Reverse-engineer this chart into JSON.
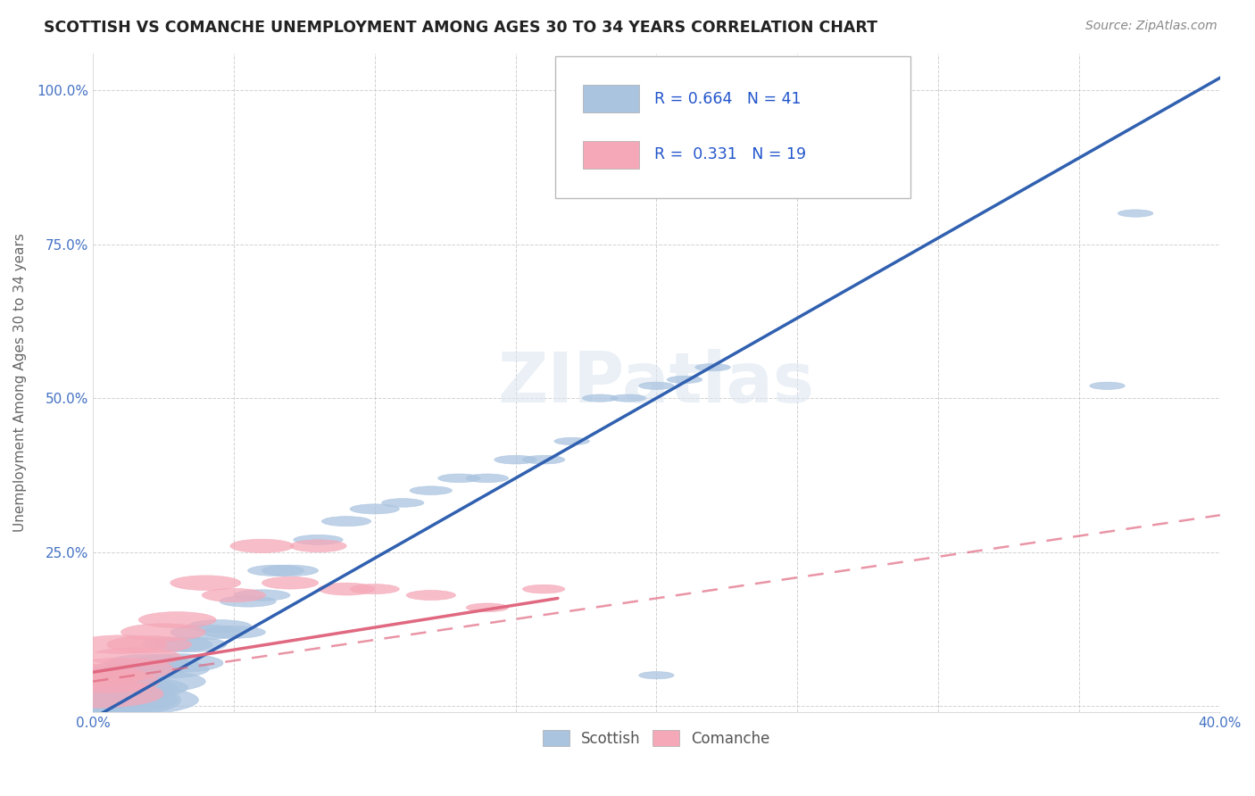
{
  "title": "SCOTTISH VS COMANCHE UNEMPLOYMENT AMONG AGES 30 TO 34 YEARS CORRELATION CHART",
  "source": "Source: ZipAtlas.com",
  "ylabel": "Unemployment Among Ages 30 to 34 years",
  "xlim": [
    0.0,
    0.4
  ],
  "ylim": [
    -0.01,
    1.06
  ],
  "xtick_positions": [
    0.0,
    0.05,
    0.1,
    0.15,
    0.2,
    0.25,
    0.3,
    0.35,
    0.4
  ],
  "xticklabels": [
    "0.0%",
    "",
    "",
    "",
    "",
    "",
    "",
    "",
    "40.0%"
  ],
  "ytick_positions": [
    0.0,
    0.25,
    0.5,
    0.75,
    1.0
  ],
  "yticklabels": [
    "",
    "25.0%",
    "50.0%",
    "75.0%",
    "100.0%"
  ],
  "scottish_R": 0.664,
  "scottish_N": 41,
  "comanche_R": 0.331,
  "comanche_N": 19,
  "scottish_color": "#aac4e0",
  "comanche_color": "#f5a8b8",
  "scottish_line_color": "#3060b0",
  "comanche_line_color": "#e06880",
  "watermark": "ZIPatlas",
  "scottish_x": [
    0.0,
    0.0,
    0.0,
    0.005,
    0.005,
    0.01,
    0.01,
    0.01,
    0.015,
    0.015,
    0.02,
    0.02,
    0.025,
    0.03,
    0.03,
    0.035,
    0.04,
    0.045,
    0.05,
    0.055,
    0.06,
    0.065,
    0.07,
    0.08,
    0.09,
    0.1,
    0.11,
    0.12,
    0.13,
    0.14,
    0.15,
    0.16,
    0.17,
    0.18,
    0.19,
    0.2,
    0.21,
    0.22,
    0.2,
    0.36,
    0.37
  ],
  "scottish_y": [
    0.01,
    0.02,
    0.04,
    0.01,
    0.03,
    0.01,
    0.03,
    0.05,
    0.03,
    0.06,
    0.04,
    0.07,
    0.06,
    0.07,
    0.1,
    0.1,
    0.12,
    0.13,
    0.12,
    0.17,
    0.18,
    0.22,
    0.22,
    0.27,
    0.3,
    0.32,
    0.33,
    0.35,
    0.37,
    0.37,
    0.4,
    0.4,
    0.43,
    0.5,
    0.5,
    0.52,
    0.53,
    0.55,
    0.05,
    0.52,
    0.8
  ],
  "scottish_size_w": [
    0.025,
    0.022,
    0.018,
    0.02,
    0.016,
    0.022,
    0.016,
    0.013,
    0.015,
    0.012,
    0.016,
    0.012,
    0.013,
    0.013,
    0.01,
    0.01,
    0.01,
    0.009,
    0.009,
    0.008,
    0.008,
    0.008,
    0.008,
    0.007,
    0.007,
    0.007,
    0.006,
    0.006,
    0.006,
    0.006,
    0.006,
    0.006,
    0.005,
    0.005,
    0.005,
    0.005,
    0.005,
    0.005,
    0.005,
    0.005,
    0.005
  ],
  "scottish_size_h": [
    0.03,
    0.025,
    0.02,
    0.022,
    0.018,
    0.025,
    0.018,
    0.015,
    0.017,
    0.014,
    0.018,
    0.014,
    0.015,
    0.015,
    0.012,
    0.012,
    0.012,
    0.01,
    0.01,
    0.009,
    0.009,
    0.009,
    0.009,
    0.008,
    0.008,
    0.008,
    0.007,
    0.007,
    0.007,
    0.007,
    0.007,
    0.007,
    0.006,
    0.006,
    0.006,
    0.006,
    0.006,
    0.006,
    0.006,
    0.006,
    0.006
  ],
  "comanche_x": [
    0.0,
    0.0,
    0.005,
    0.01,
    0.01,
    0.015,
    0.02,
    0.025,
    0.03,
    0.04,
    0.05,
    0.06,
    0.07,
    0.08,
    0.09,
    0.1,
    0.12,
    0.14,
    0.16
  ],
  "comanche_y": [
    0.02,
    0.05,
    0.04,
    0.06,
    0.1,
    0.08,
    0.1,
    0.12,
    0.14,
    0.2,
    0.18,
    0.26,
    0.2,
    0.26,
    0.19,
    0.19,
    0.18,
    0.16,
    0.19
  ],
  "comanche_size_w": [
    0.02,
    0.015,
    0.015,
    0.015,
    0.013,
    0.013,
    0.012,
    0.012,
    0.011,
    0.01,
    0.009,
    0.009,
    0.008,
    0.008,
    0.008,
    0.007,
    0.007,
    0.006,
    0.006
  ],
  "comanche_size_h": [
    0.023,
    0.018,
    0.018,
    0.018,
    0.015,
    0.015,
    0.014,
    0.014,
    0.013,
    0.012,
    0.011,
    0.011,
    0.01,
    0.01,
    0.01,
    0.008,
    0.008,
    0.007,
    0.007
  ],
  "scottish_line": {
    "x0": 0.0,
    "y0": -0.02,
    "x1": 0.4,
    "y1": 1.02
  },
  "comanche_solid_line": {
    "x0": 0.0,
    "y0": 0.055,
    "x1": 0.165,
    "y1": 0.175
  },
  "comanche_dashed_line": {
    "x0": 0.0,
    "y0": 0.04,
    "x1": 0.4,
    "y1": 0.31
  }
}
